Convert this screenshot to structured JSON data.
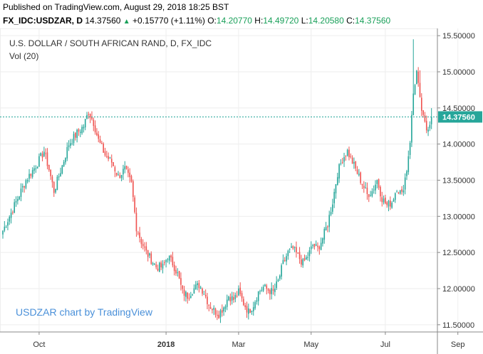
{
  "published": "Published on TradingView.com, August 29, 2018 18:25 BST",
  "header": {
    "symbol": "FX_IDC:USDZAR, D",
    "last": "14.37560",
    "change": "+0.15770 (+1.11%)",
    "open_label": "O:",
    "open": "14.20770",
    "high_label": "H:",
    "high": "14.49720",
    "low_label": "L:",
    "low": "14.20580",
    "close_label": "C:",
    "close": "14.37560"
  },
  "colors": {
    "up": "#26a69a",
    "down": "#ef5350",
    "accent_text": "#1aa05a",
    "watermark": "#4a90d9"
  },
  "chart_data": {
    "type": "candlestick",
    "title": "U.S. DOLLAR / SOUTH AFRICAN RAND, D, FX_IDC",
    "subtitle": "Vol (20)",
    "watermark": "USDZAR chart by TradingView",
    "last_price": 14.3756,
    "last_price_label": "14.37560",
    "ylim": [
      11.4,
      15.6
    ],
    "y_ticks": [
      "11.50000",
      "12.00000",
      "12.50000",
      "13.00000",
      "13.50000",
      "14.00000",
      "14.50000",
      "15.00000",
      "15.50000"
    ],
    "y_tick_values": [
      11.5,
      12.0,
      12.5,
      13.0,
      13.5,
      14.0,
      14.5,
      15.0,
      15.5
    ],
    "x_ticks": [
      {
        "label": "Oct",
        "index": 22,
        "bold": false
      },
      {
        "label": "2018",
        "index": 99,
        "bold": true
      },
      {
        "label": "Mar",
        "index": 143,
        "bold": false
      },
      {
        "label": "May",
        "index": 187,
        "bold": false
      },
      {
        "label": "Jul",
        "index": 232,
        "bold": false
      },
      {
        "label": "Sep",
        "index": 276,
        "bold": false
      }
    ],
    "close_path": [
      [
        0,
        12.8
      ],
      [
        8,
        13.2
      ],
      [
        14,
        13.5
      ],
      [
        20,
        13.7
      ],
      [
        25,
        13.9
      ],
      [
        28,
        13.65
      ],
      [
        31,
        13.35
      ],
      [
        36,
        13.7
      ],
      [
        40,
        14.0
      ],
      [
        45,
        14.15
      ],
      [
        49,
        14.25
      ],
      [
        52,
        14.45
      ],
      [
        55,
        14.3
      ],
      [
        58,
        14.05
      ],
      [
        62,
        13.85
      ],
      [
        66,
        13.75
      ],
      [
        70,
        13.55
      ],
      [
        74,
        13.65
      ],
      [
        78,
        13.45
      ],
      [
        81,
        12.85
      ],
      [
        84,
        12.65
      ],
      [
        87,
        12.5
      ],
      [
        90,
        12.4
      ],
      [
        93,
        12.3
      ],
      [
        97,
        12.3
      ],
      [
        100,
        12.45
      ],
      [
        103,
        12.35
      ],
      [
        106,
        12.2
      ],
      [
        109,
        11.95
      ],
      [
        112,
        11.9
      ],
      [
        116,
        12.0
      ],
      [
        119,
        12.05
      ],
      [
        122,
        11.95
      ],
      [
        125,
        11.78
      ],
      [
        128,
        11.7
      ],
      [
        131,
        11.65
      ],
      [
        134,
        11.75
      ],
      [
        137,
        11.9
      ],
      [
        140,
        11.85
      ],
      [
        143,
        11.95
      ],
      [
        146,
        11.8
      ],
      [
        149,
        11.68
      ],
      [
        152,
        11.78
      ],
      [
        155,
        11.95
      ],
      [
        158,
        12.02
      ],
      [
        161,
        11.98
      ],
      [
        164,
        11.95
      ],
      [
        167,
        12.1
      ],
      [
        170,
        12.35
      ],
      [
        173,
        12.5
      ],
      [
        176,
        12.55
      ],
      [
        179,
        12.45
      ],
      [
        182,
        12.35
      ],
      [
        185,
        12.45
      ],
      [
        188,
        12.6
      ],
      [
        191,
        12.55
      ],
      [
        194,
        12.7
      ],
      [
        197,
        12.9
      ],
      [
        200,
        13.2
      ],
      [
        203,
        13.6
      ],
      [
        206,
        13.8
      ],
      [
        209,
        13.9
      ],
      [
        212,
        13.75
      ],
      [
        215,
        13.6
      ],
      [
        218,
        13.45
      ],
      [
        221,
        13.3
      ],
      [
        224,
        13.35
      ],
      [
        227,
        13.5
      ],
      [
        230,
        13.25
      ],
      [
        233,
        13.15
      ],
      [
        236,
        13.2
      ],
      [
        239,
        13.4
      ],
      [
        242,
        13.3
      ],
      [
        245,
        13.65
      ],
      [
        247,
        14.05
      ],
      [
        249,
        14.7
      ],
      [
        251,
        15.0
      ],
      [
        253,
        14.6
      ],
      [
        255,
        14.35
      ],
      [
        257,
        14.2
      ],
      [
        259,
        14.3
      ],
      [
        260,
        14.3756
      ]
    ]
  }
}
